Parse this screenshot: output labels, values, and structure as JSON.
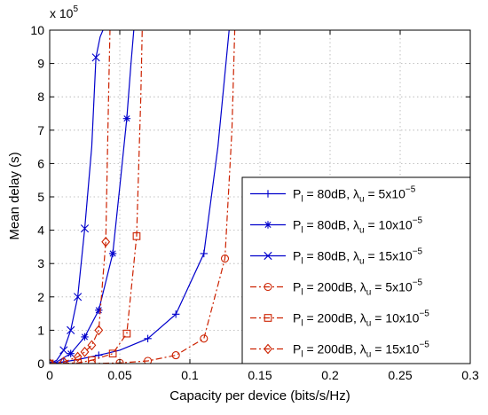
{
  "chart_data": {
    "type": "line",
    "xlabel": "Capacity per device (bits/s/Hz)",
    "ylabel": "Mean delay (s)",
    "y_multiplier": "x 10",
    "y_multiplier_exp": "5",
    "xlim": [
      0,
      0.3
    ],
    "ylim": [
      0,
      10
    ],
    "xticks": [
      0,
      0.05,
      0.1,
      0.15,
      0.2,
      0.25,
      0.3
    ],
    "xtick_labels": [
      "0",
      "0.05",
      "0.1",
      "0.15",
      "0.2",
      "0.25",
      "0.3"
    ],
    "yticks": [
      0,
      1,
      2,
      3,
      4,
      5,
      6,
      7,
      8,
      9,
      10
    ],
    "ytick_labels": [
      "0",
      "1",
      "2",
      "3",
      "4",
      "5",
      "6",
      "7",
      "8",
      "9",
      "10"
    ],
    "grid": true,
    "legend_position": "right",
    "series": [
      {
        "label_p": "P",
        "label_psub": "l",
        "label_mid": " = 80dB, λ",
        "label_lsub": "u",
        "label_val": " = 5x10",
        "label_exp": "−5",
        "color": "#0000cc",
        "dash": "solid",
        "marker": "plus",
        "x": [
          0.0,
          0.005,
          0.01,
          0.02,
          0.035,
          0.05,
          0.07,
          0.09,
          0.11,
          0.12,
          0.128
        ],
        "y": [
          0.0,
          0.02,
          0.05,
          0.12,
          0.25,
          0.4,
          0.75,
          1.48,
          3.3,
          6.5,
          10.0
        ],
        "markers": [
          0,
          2,
          4,
          6,
          7,
          8
        ]
      },
      {
        "label_p": "P",
        "label_psub": "l",
        "label_mid": " = 80dB, λ",
        "label_lsub": "u",
        "label_val": " = 10x10",
        "label_exp": "−5",
        "color": "#0000cc",
        "dash": "solid",
        "marker": "star",
        "x": [
          0.0,
          0.005,
          0.015,
          0.025,
          0.035,
          0.045,
          0.05,
          0.055,
          0.058,
          0.06
        ],
        "y": [
          0.0,
          0.05,
          0.3,
          0.8,
          1.6,
          3.3,
          5.3,
          7.35,
          9.0,
          10.0
        ],
        "markers": [
          0,
          2,
          3,
          4,
          5,
          7
        ]
      },
      {
        "label_p": "P",
        "label_psub": "l",
        "label_mid": " = 80dB, λ",
        "label_lsub": "u",
        "label_val": " = 15x10",
        "label_exp": "−5",
        "color": "#0000cc",
        "dash": "solid",
        "marker": "x",
        "x": [
          0.0,
          0.005,
          0.01,
          0.015,
          0.02,
          0.025,
          0.03,
          0.033,
          0.036,
          0.038
        ],
        "y": [
          0.0,
          0.1,
          0.4,
          1.0,
          2.0,
          4.05,
          6.5,
          9.18,
          9.8,
          10.0
        ],
        "markers": [
          0,
          2,
          3,
          4,
          5,
          7
        ]
      },
      {
        "label_p": "P",
        "label_psub": "l",
        "label_mid": " = 200dB, λ",
        "label_lsub": "u",
        "label_val": " = 5x10",
        "label_exp": "−5",
        "color": "#cc2200",
        "dash": "dashdot",
        "marker": "circle",
        "x": [
          0.0,
          0.03,
          0.05,
          0.07,
          0.09,
          0.11,
          0.125,
          0.13,
          0.132
        ],
        "y": [
          0.0,
          0.0,
          0.02,
          0.08,
          0.25,
          0.75,
          3.15,
          7.0,
          10.0
        ],
        "markers": [
          0,
          1,
          2,
          3,
          4,
          5,
          6
        ]
      },
      {
        "label_p": "P",
        "label_psub": "l",
        "label_mid": " = 200dB, λ",
        "label_lsub": "u",
        "label_val": " = 10x10",
        "label_exp": "−5",
        "color": "#cc2200",
        "dash": "dashdot",
        "marker": "square",
        "x": [
          0.0,
          0.02,
          0.03,
          0.045,
          0.055,
          0.062,
          0.065,
          0.066
        ],
        "y": [
          0.0,
          0.02,
          0.1,
          0.3,
          0.9,
          3.82,
          8.0,
          10.0
        ],
        "markers": [
          0,
          1,
          2,
          3,
          4,
          5
        ]
      },
      {
        "label_p": "P",
        "label_psub": "l",
        "label_mid": " = 200dB, λ",
        "label_lsub": "u",
        "label_val": " = 15x10",
        "label_exp": "−5",
        "color": "#cc2200",
        "dash": "dashdot",
        "marker": "diamond",
        "x": [
          0.0,
          0.01,
          0.02,
          0.025,
          0.03,
          0.035,
          0.04,
          0.042,
          0.043
        ],
        "y": [
          0.0,
          0.05,
          0.2,
          0.35,
          0.55,
          1.0,
          3.65,
          8.0,
          10.0
        ],
        "markers": [
          0,
          1,
          2,
          3,
          4,
          5,
          6
        ]
      }
    ]
  }
}
